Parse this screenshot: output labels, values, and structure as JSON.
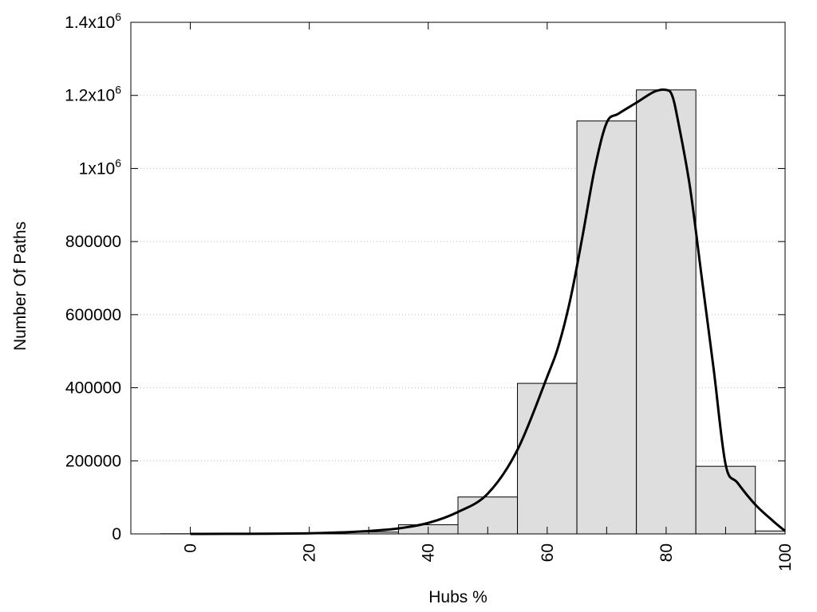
{
  "chart_data": {
    "type": "bar",
    "xlabel": "Hubs %",
    "ylabel": "Number Of Paths",
    "xlim": [
      -10,
      100
    ],
    "ylim": [
      0,
      1400000
    ],
    "grid": "horizontal-dotted",
    "x_ticks": [
      {
        "value": 0,
        "label": "0"
      },
      {
        "value": 20,
        "label": "20"
      },
      {
        "value": 40,
        "label": "40"
      },
      {
        "value": 60,
        "label": "60"
      },
      {
        "value": 80,
        "label": "80"
      },
      {
        "value": 100,
        "label": "100"
      }
    ],
    "y_ticks": [
      {
        "value": 0,
        "base": "0",
        "exp": ""
      },
      {
        "value": 200000,
        "base": "200000",
        "exp": ""
      },
      {
        "value": 400000,
        "base": "400000",
        "exp": ""
      },
      {
        "value": 600000,
        "base": "600000",
        "exp": ""
      },
      {
        "value": 800000,
        "base": "800000",
        "exp": ""
      },
      {
        "value": 1000000,
        "base": "1x10",
        "exp": "6"
      },
      {
        "value": 1200000,
        "base": "1.2x10",
        "exp": "6"
      },
      {
        "value": 1400000,
        "base": "1.4x10",
        "exp": "6"
      }
    ],
    "bars": [
      {
        "x": 0,
        "value": 500
      },
      {
        "x": 10,
        "value": 600
      },
      {
        "x": 20,
        "value": 1500
      },
      {
        "x": 30,
        "value": 5000
      },
      {
        "x": 40,
        "value": 25000
      },
      {
        "x": 50,
        "value": 101000
      },
      {
        "x": 60,
        "value": 412000
      },
      {
        "x": 70,
        "value": 1130000
      },
      {
        "x": 80,
        "value": 1215000
      },
      {
        "x": 90,
        "value": 185000
      },
      {
        "x": 100,
        "value": 8000
      }
    ],
    "bar_width": 10,
    "curve": [
      [
        0,
        0
      ],
      [
        10,
        400
      ],
      [
        20,
        1500
      ],
      [
        25,
        4000
      ],
      [
        30,
        8000
      ],
      [
        35,
        15000
      ],
      [
        40,
        30000
      ],
      [
        45,
        60000
      ],
      [
        50,
        110000
      ],
      [
        55,
        230000
      ],
      [
        60,
        430000
      ],
      [
        62,
        520000
      ],
      [
        64,
        650000
      ],
      [
        66,
        820000
      ],
      [
        68,
        1000000
      ],
      [
        70,
        1125000
      ],
      [
        72,
        1150000
      ],
      [
        75,
        1180000
      ],
      [
        78,
        1210000
      ],
      [
        80,
        1215000
      ],
      [
        81,
        1200000
      ],
      [
        82,
        1130000
      ],
      [
        84,
        950000
      ],
      [
        86,
        700000
      ],
      [
        88,
        450000
      ],
      [
        90,
        190000
      ],
      [
        92,
        140000
      ],
      [
        95,
        80000
      ],
      [
        98,
        35000
      ],
      [
        100,
        8000
      ]
    ]
  }
}
